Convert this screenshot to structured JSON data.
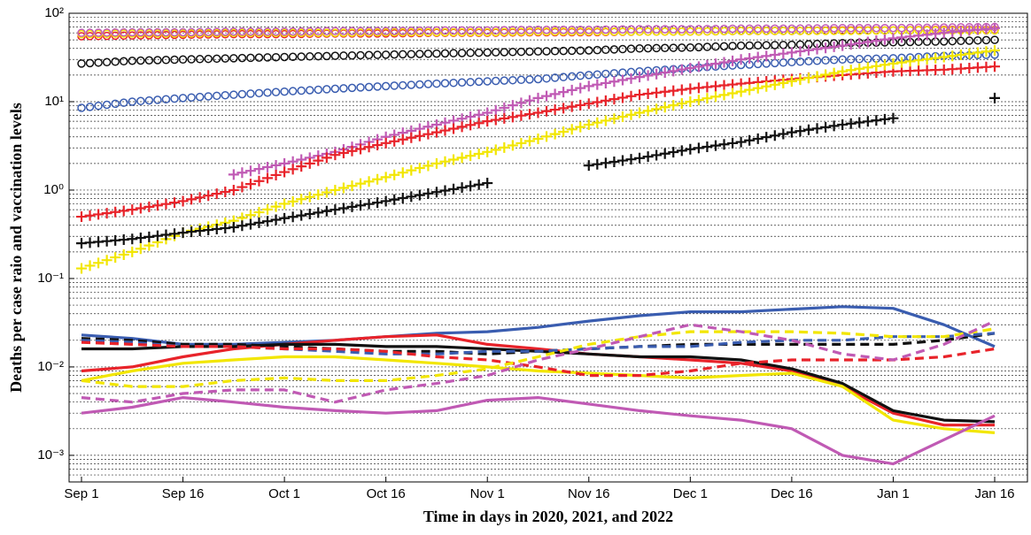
{
  "chart_data": {
    "type": "line",
    "log_y": true,
    "grid": true,
    "xlabel": "Time in days in 2020, 2021, and 2022",
    "ylabel": "Deaths per case raio and vaccination levels",
    "categories": [
      "Sep 1",
      null,
      "Sep 16",
      null,
      "Oct 1",
      null,
      "Oct 16",
      null,
      "Nov 1",
      null,
      "Nov 16",
      null,
      "Dec 1",
      null,
      "Dec 16",
      null,
      "Jan 1",
      null,
      "Jan 16"
    ],
    "ylim": [
      0.0005,
      100
    ],
    "yticks": [
      {
        "value": 0.001,
        "label": "10⁻³"
      },
      {
        "value": 0.01,
        "label": "10⁻²"
      },
      {
        "value": 0.1,
        "label": "10⁻¹"
      },
      {
        "value": 1,
        "label": "10⁰"
      },
      {
        "value": 10,
        "label": "10¹"
      },
      {
        "value": 100,
        "label": "10²"
      }
    ],
    "series": [
      {
        "color": "#e8232a",
        "style": "circle",
        "values": [
          55,
          56,
          57,
          58,
          58,
          59,
          59,
          60,
          60,
          61,
          61,
          62,
          62,
          63,
          63,
          64,
          64,
          65,
          65
        ]
      },
      {
        "color": "#f2e600",
        "style": "circle",
        "values": [
          58,
          59,
          59,
          60,
          60,
          60,
          61,
          61,
          61,
          62,
          62,
          62,
          62,
          63,
          63,
          63,
          64,
          64,
          64
        ]
      },
      {
        "color": "#c05ab4",
        "style": "circle",
        "values": [
          60,
          61,
          61,
          62,
          62,
          63,
          63,
          64,
          64,
          65,
          65,
          66,
          66,
          67,
          67,
          68,
          68,
          69,
          70
        ]
      },
      {
        "color": "#111111",
        "style": "circle",
        "values": [
          27,
          29,
          30,
          31,
          32,
          33,
          34,
          35,
          36,
          37,
          38,
          40,
          41,
          43,
          44,
          46,
          47,
          48,
          50
        ]
      },
      {
        "color": "#3a5db0",
        "style": "circle",
        "values": [
          8.5,
          10,
          11,
          12,
          13,
          14,
          15,
          16,
          17,
          18,
          20,
          22,
          24,
          26,
          28,
          30,
          31,
          33,
          34
        ]
      },
      {
        "color": "#c05ab4",
        "style": "plus",
        "values": [
          null,
          null,
          null,
          1.5,
          2,
          2.7,
          4,
          5.5,
          7.5,
          11,
          15,
          19,
          24,
          30,
          36,
          43,
          52,
          60,
          68
        ]
      },
      {
        "color": "#e8232a",
        "style": "plus",
        "values": [
          0.5,
          0.6,
          0.75,
          1,
          1.6,
          2.5,
          3.4,
          4.5,
          6,
          7.5,
          9.5,
          12,
          14,
          16,
          18,
          20,
          22,
          23,
          25
        ]
      },
      {
        "color": "#f2e600",
        "style": "plus",
        "values": [
          0.13,
          0.2,
          0.33,
          0.45,
          0.7,
          1,
          1.4,
          2,
          2.7,
          3.8,
          5.5,
          7.5,
          10,
          13,
          17,
          22,
          27,
          32,
          38
        ]
      },
      {
        "color": "#111111",
        "style": "plus",
        "values": [
          0.25,
          0.28,
          0.33,
          0.38,
          0.48,
          0.6,
          0.75,
          0.95,
          1.2,
          null,
          1.9,
          2.3,
          2.9,
          3.5,
          4.5,
          5.5,
          6.5,
          null,
          11
        ]
      },
      {
        "color": "#3a5db0",
        "style": "solid",
        "values": [
          0.023,
          0.021,
          0.018,
          0.018,
          0.019,
          0.02,
          0.022,
          0.024,
          0.025,
          0.028,
          0.033,
          0.038,
          0.042,
          0.042,
          0.045,
          0.048,
          0.046,
          0.03,
          0.017
        ]
      },
      {
        "color": "#e8232a",
        "style": "solid",
        "values": [
          0.009,
          0.01,
          0.013,
          0.016,
          0.018,
          0.02,
          0.022,
          0.023,
          0.018,
          0.016,
          0.014,
          0.013,
          0.012,
          0.011,
          0.009,
          0.006,
          0.003,
          0.0022,
          0.0022
        ]
      },
      {
        "color": "#111111",
        "style": "solid",
        "values": [
          0.016,
          0.016,
          0.017,
          0.017,
          0.018,
          0.018,
          0.017,
          0.017,
          0.016,
          0.015,
          0.014,
          0.013,
          0.013,
          0.012,
          0.0095,
          0.0065,
          0.0032,
          0.0025,
          0.0024
        ]
      },
      {
        "color": "#f2e600",
        "style": "solid",
        "values": [
          0.007,
          0.009,
          0.011,
          0.012,
          0.013,
          0.013,
          0.012,
          0.011,
          0.01,
          0.009,
          0.0085,
          0.008,
          0.0075,
          0.008,
          0.0085,
          0.006,
          0.0025,
          0.002,
          0.0018
        ]
      },
      {
        "color": "#c05ab4",
        "style": "solid",
        "values": [
          0.003,
          0.0035,
          0.0045,
          0.004,
          0.0035,
          0.0032,
          0.003,
          0.0032,
          0.0042,
          0.0045,
          0.0038,
          0.0032,
          0.0028,
          0.0025,
          0.002,
          0.001,
          0.0008,
          0.0015,
          0.0028
        ]
      },
      {
        "color": "#111111",
        "style": "dashed",
        "values": [
          0.021,
          0.02,
          0.018,
          0.018,
          0.017,
          0.016,
          0.015,
          0.015,
          0.014,
          0.015,
          0.016,
          0.017,
          0.018,
          0.018,
          0.018,
          0.018,
          0.018,
          0.02,
          0.024
        ]
      },
      {
        "color": "#3a5db0",
        "style": "dashed",
        "values": [
          0.02,
          0.019,
          0.017,
          0.017,
          0.016,
          0.015,
          0.014,
          0.014,
          0.015,
          0.015,
          0.016,
          0.017,
          0.017,
          0.019,
          0.02,
          0.02,
          0.022,
          0.022,
          0.024
        ]
      },
      {
        "color": "#e8232a",
        "style": "dashed",
        "values": [
          0.019,
          0.018,
          0.017,
          0.017,
          0.016,
          0.016,
          0.015,
          0.013,
          0.012,
          0.01,
          0.008,
          0.008,
          0.009,
          0.011,
          0.012,
          0.012,
          0.012,
          0.013,
          0.016
        ]
      },
      {
        "color": "#f2e600",
        "style": "dashed",
        "values": [
          0.007,
          0.006,
          0.006,
          0.007,
          0.0075,
          0.007,
          0.007,
          0.008,
          0.0095,
          0.013,
          0.018,
          0.022,
          0.025,
          0.025,
          0.025,
          0.024,
          0.022,
          0.022,
          0.027
        ]
      },
      {
        "color": "#c05ab4",
        "style": "dashed",
        "values": [
          0.0045,
          0.004,
          0.005,
          0.0055,
          0.0055,
          0.004,
          0.0055,
          0.0065,
          0.008,
          0.012,
          0.016,
          0.022,
          0.03,
          0.025,
          0.02,
          0.014,
          0.012,
          0.018,
          0.033
        ]
      }
    ]
  }
}
